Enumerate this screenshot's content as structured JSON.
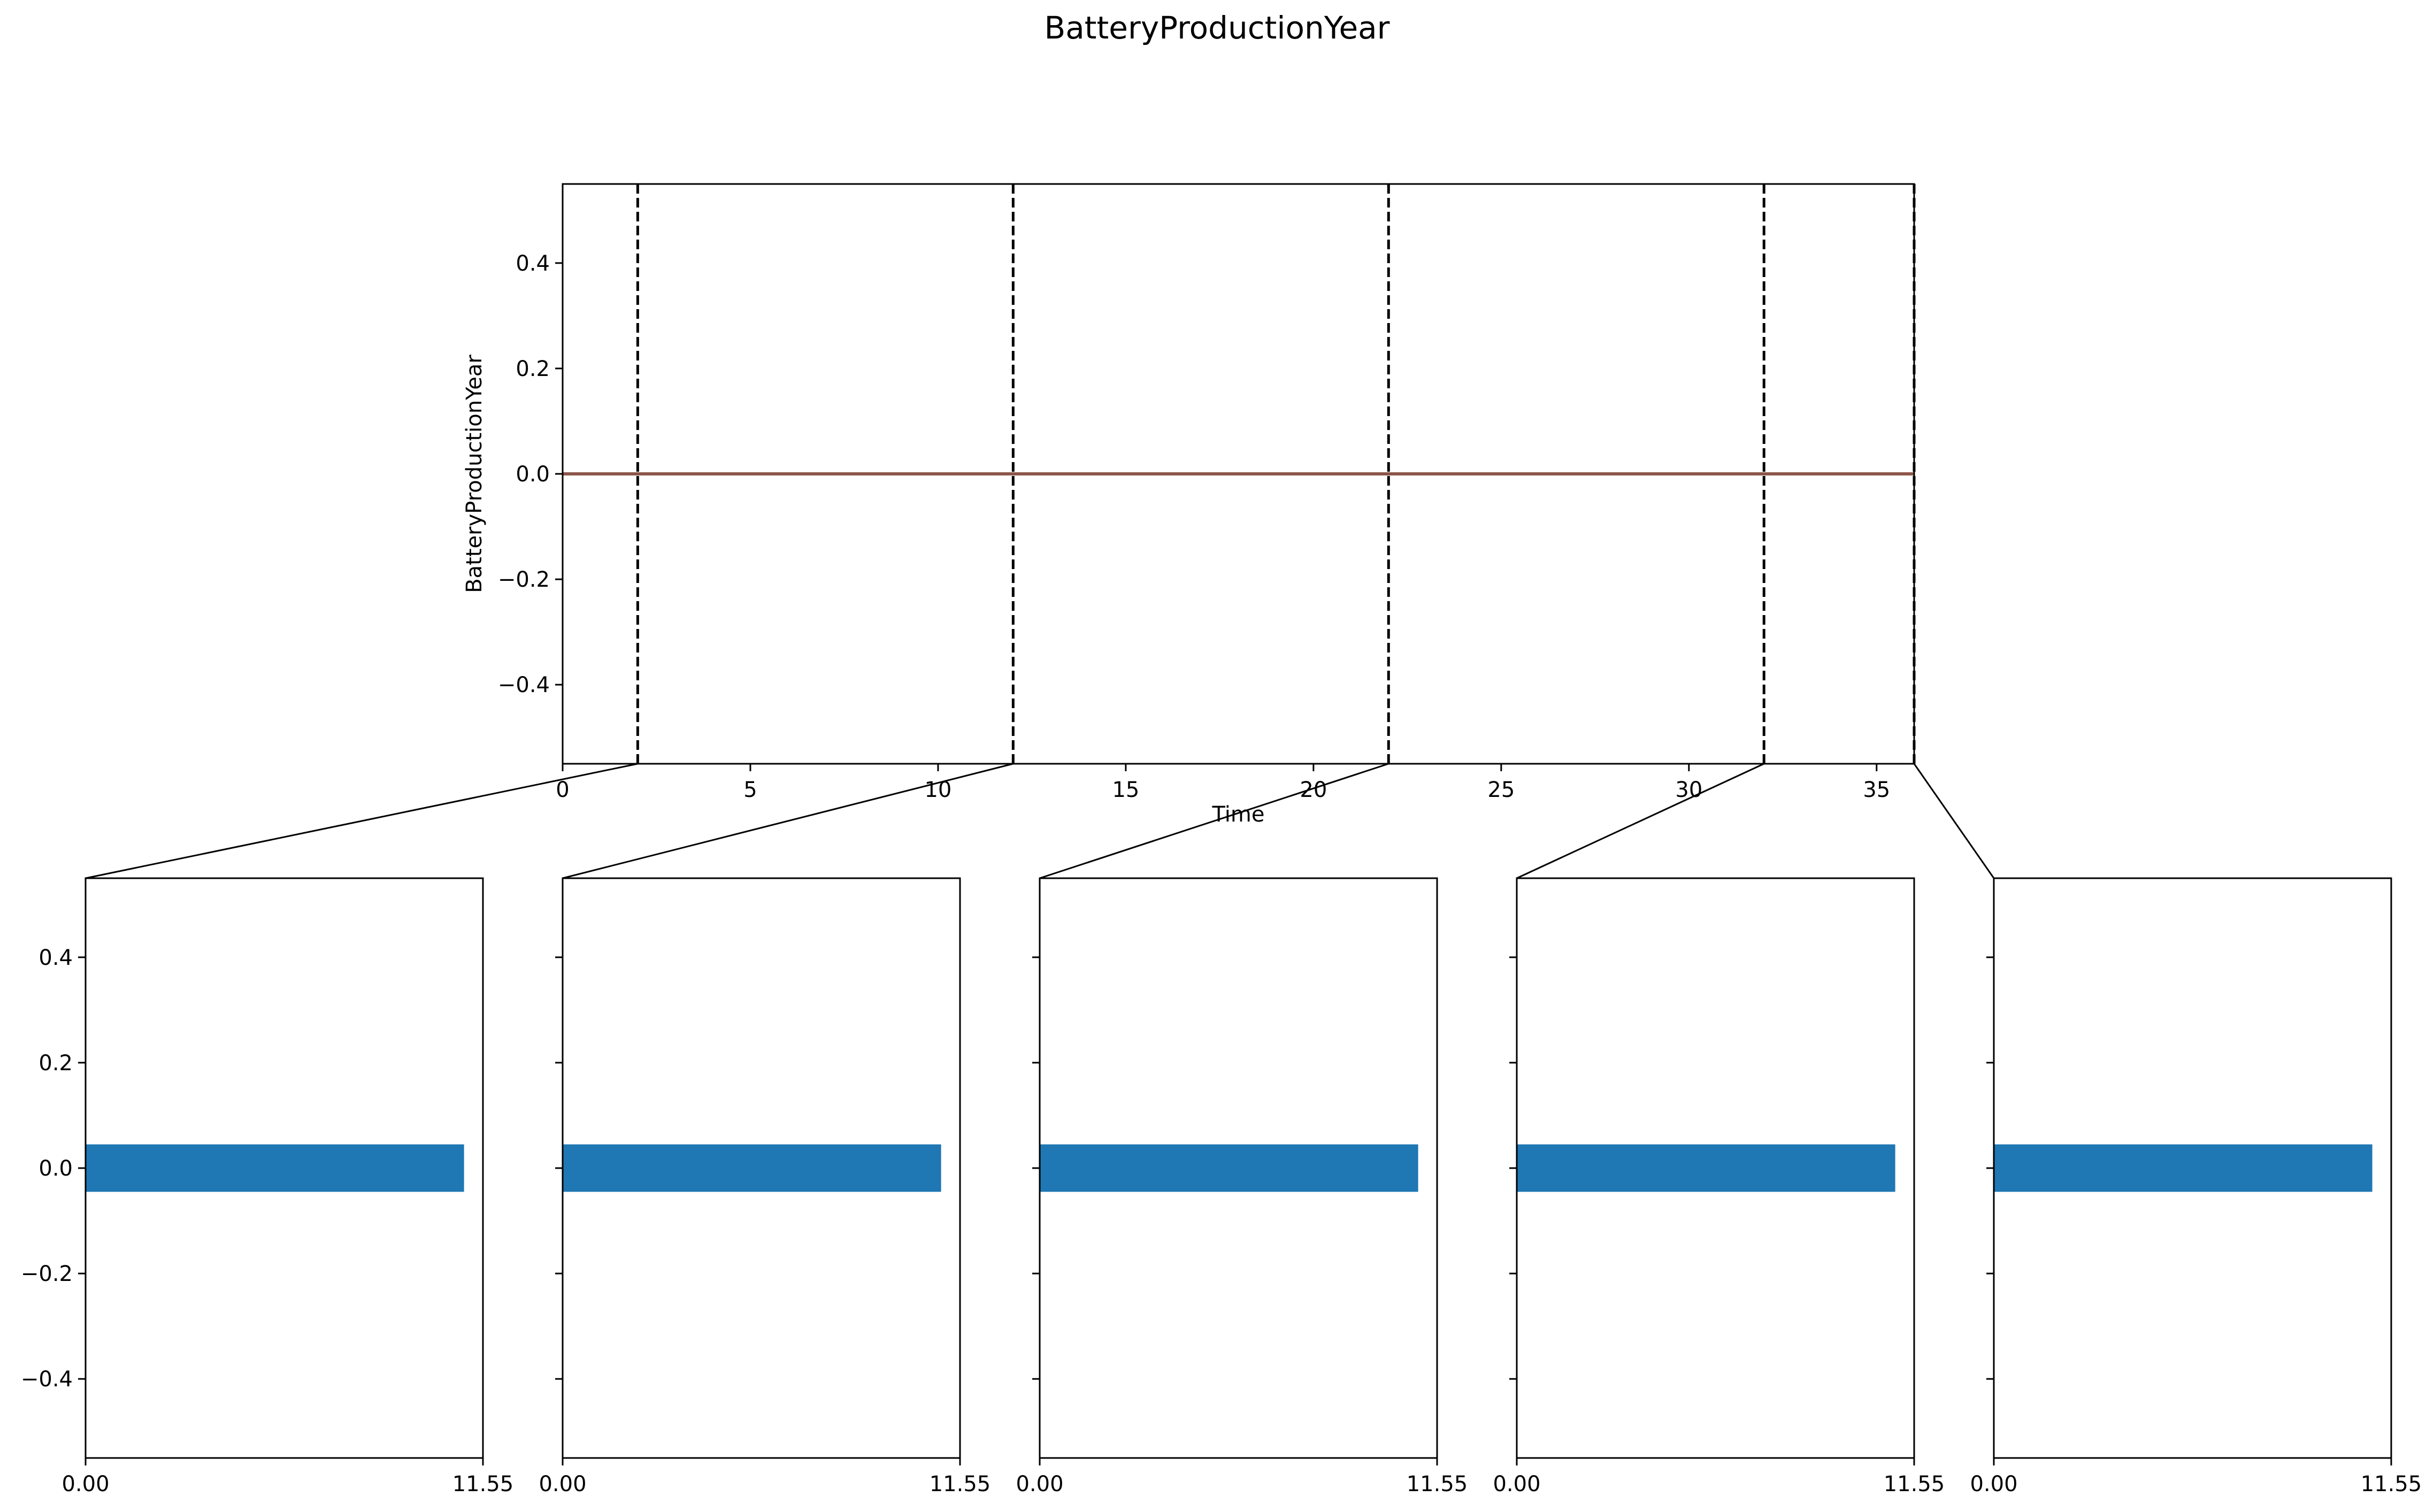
{
  "title": "BatteryProductionYear",
  "colors": {
    "line": "#8c564b",
    "bar": "#1f77b4",
    "dashed": "#000000",
    "axes": "#000000"
  },
  "chart_data": [
    {
      "type": "line",
      "xlabel": "Time",
      "ylabel": "BatteryProductionYear",
      "xlim": [
        0,
        36
      ],
      "ylim": [
        -0.55,
        0.55
      ],
      "xticks": [
        0,
        5,
        10,
        15,
        20,
        25,
        30,
        35
      ],
      "yticks": [
        -0.4,
        -0.2,
        0.0,
        0.2,
        0.4
      ],
      "xtick_labels": [
        "0",
        "5",
        "10",
        "15",
        "20",
        "25",
        "30",
        "35"
      ],
      "ytick_labels": [
        "−0.4",
        "−0.2",
        "0.0",
        "0.2",
        "0.4"
      ],
      "x": [
        0,
        36
      ],
      "y": [
        0.0,
        0.0
      ],
      "vlines": [
        2,
        12,
        22,
        32,
        36
      ],
      "grid": false
    },
    {
      "type": "bar",
      "orientation": "horizontal",
      "panels": 5,
      "categories": [
        0.0
      ],
      "values": [
        11.0
      ],
      "xlim": [
        0,
        11.55
      ],
      "ylim": [
        -0.55,
        0.55
      ],
      "bar_height": 0.09,
      "xtick_labels": [
        "0.00",
        "11.55"
      ],
      "yticks": [
        -0.4,
        -0.2,
        0.0,
        0.2,
        0.4
      ],
      "ytick_labels": [
        "−0.4",
        "−0.2",
        "0.0",
        "0.2",
        "0.4"
      ],
      "grid": false
    }
  ]
}
